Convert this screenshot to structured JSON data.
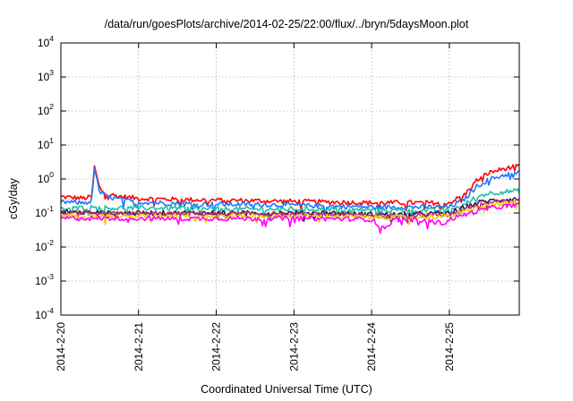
{
  "chart_data": {
    "type": "line",
    "title": "/data/run/goesPlots/archive/2014-02-25/22:00/flux/../bryn/5daysMoon.plot",
    "xlabel": "Coordinated Universal Time (UTC)",
    "ylabel": "cGy/day",
    "yscale": "log",
    "ylim": [
      0.0001,
      10000
    ],
    "xlim": [
      0,
      5.9
    ],
    "grid": true,
    "yticks": [
      {
        "base": "10",
        "exp": "-4",
        "value": 0.0001
      },
      {
        "base": "10",
        "exp": "-3",
        "value": 0.001
      },
      {
        "base": "10",
        "exp": "-2",
        "value": 0.01
      },
      {
        "base": "10",
        "exp": "-1",
        "value": 0.1
      },
      {
        "base": "10",
        "exp": "0",
        "value": 1
      },
      {
        "base": "10",
        "exp": "1",
        "value": 10
      },
      {
        "base": "10",
        "exp": "2",
        "value": 100
      },
      {
        "base": "10",
        "exp": "3",
        "value": 1000
      },
      {
        "base": "10",
        "exp": "4",
        "value": 10000
      }
    ],
    "xticks": [
      {
        "label": "2014-2-20",
        "day": 0
      },
      {
        "label": "2014-2-21",
        "day": 1
      },
      {
        "label": "2014-2-22",
        "day": 2
      },
      {
        "label": "2014-2-23",
        "day": 3
      },
      {
        "label": "2014-2-24",
        "day": 4
      },
      {
        "label": "2014-2-25",
        "day": 5
      }
    ],
    "series": [
      {
        "color": "#ff0000",
        "points": [
          [
            0,
            0.3
          ],
          [
            0.3,
            0.27
          ],
          [
            0.4,
            0.3
          ],
          [
            0.43,
            2.6
          ],
          [
            0.5,
            0.5
          ],
          [
            0.6,
            0.36
          ],
          [
            0.8,
            0.3
          ],
          [
            1,
            0.27
          ],
          [
            1.5,
            0.25
          ],
          [
            2,
            0.24
          ],
          [
            2.5,
            0.23
          ],
          [
            3,
            0.22
          ],
          [
            3.5,
            0.21
          ],
          [
            4,
            0.2
          ],
          [
            4.5,
            0.2
          ],
          [
            5,
            0.2
          ],
          [
            5.2,
            0.35
          ],
          [
            5.35,
            0.9
          ],
          [
            5.5,
            1.5
          ],
          [
            5.7,
            2.0
          ],
          [
            5.9,
            2.4
          ]
        ]
      },
      {
        "color": "#1f78ff",
        "points": [
          [
            0,
            0.21
          ],
          [
            0.3,
            0.2
          ],
          [
            0.4,
            0.22
          ],
          [
            0.43,
            2.2
          ],
          [
            0.5,
            0.4
          ],
          [
            0.6,
            0.3
          ],
          [
            0.8,
            0.24
          ],
          [
            1,
            0.21
          ],
          [
            1.5,
            0.19
          ],
          [
            2,
            0.18
          ],
          [
            2.5,
            0.18
          ],
          [
            3,
            0.17
          ],
          [
            3.5,
            0.16
          ],
          [
            4,
            0.15
          ],
          [
            4.5,
            0.15
          ],
          [
            5,
            0.15
          ],
          [
            5.2,
            0.26
          ],
          [
            5.35,
            0.6
          ],
          [
            5.5,
            0.95
          ],
          [
            5.7,
            1.3
          ],
          [
            5.9,
            1.6
          ]
        ]
      },
      {
        "color": "#20c0a0",
        "points": [
          [
            0,
            0.13
          ],
          [
            0.43,
            0.15
          ],
          [
            0.6,
            0.14
          ],
          [
            1,
            0.14
          ],
          [
            1.5,
            0.14
          ],
          [
            2,
            0.13
          ],
          [
            2.5,
            0.13
          ],
          [
            3,
            0.13
          ],
          [
            3.5,
            0.13
          ],
          [
            4,
            0.12
          ],
          [
            4.5,
            0.12
          ],
          [
            5,
            0.12
          ],
          [
            5.2,
            0.18
          ],
          [
            5.35,
            0.3
          ],
          [
            5.5,
            0.38
          ],
          [
            5.7,
            0.42
          ],
          [
            5.9,
            0.45
          ]
        ]
      },
      {
        "color": "#3a1060",
        "points": [
          [
            0,
            0.11
          ],
          [
            0.5,
            0.1
          ],
          [
            1,
            0.1
          ],
          [
            1.5,
            0.1
          ],
          [
            2,
            0.1
          ],
          [
            2.5,
            0.1
          ],
          [
            3,
            0.1
          ],
          [
            3.5,
            0.1
          ],
          [
            4,
            0.09
          ],
          [
            4.5,
            0.09
          ],
          [
            5,
            0.1
          ],
          [
            5.2,
            0.15
          ],
          [
            5.4,
            0.21
          ],
          [
            5.6,
            0.24
          ],
          [
            5.9,
            0.26
          ]
        ]
      },
      {
        "color": "#b83070",
        "points": [
          [
            0,
            0.1
          ],
          [
            0.5,
            0.095
          ],
          [
            1,
            0.095
          ],
          [
            1.5,
            0.095
          ],
          [
            2,
            0.095
          ],
          [
            2.5,
            0.095
          ],
          [
            3,
            0.09
          ],
          [
            3.5,
            0.09
          ],
          [
            4,
            0.085
          ],
          [
            4.5,
            0.085
          ],
          [
            5,
            0.09
          ],
          [
            5.2,
            0.13
          ],
          [
            5.4,
            0.18
          ],
          [
            5.6,
            0.21
          ],
          [
            5.9,
            0.23
          ]
        ]
      },
      {
        "color": "#f0d000",
        "points": [
          [
            0,
            0.085
          ],
          [
            0.5,
            0.08
          ],
          [
            1,
            0.08
          ],
          [
            1.5,
            0.085
          ],
          [
            2,
            0.08
          ],
          [
            2.5,
            0.08
          ],
          [
            3,
            0.08
          ],
          [
            3.5,
            0.08
          ],
          [
            4,
            0.075
          ],
          [
            4.5,
            0.075
          ],
          [
            5,
            0.08
          ],
          [
            5.2,
            0.11
          ],
          [
            5.4,
            0.15
          ],
          [
            5.6,
            0.18
          ],
          [
            5.9,
            0.2
          ]
        ]
      },
      {
        "color": "#ff00ff",
        "points": [
          [
            0,
            0.07
          ],
          [
            0.5,
            0.07
          ],
          [
            1,
            0.07
          ],
          [
            1.5,
            0.068
          ],
          [
            2,
            0.07
          ],
          [
            2.5,
            0.068
          ],
          [
            3,
            0.07
          ],
          [
            3.5,
            0.068
          ],
          [
            4,
            0.065
          ],
          [
            4.15,
            0.035
          ],
          [
            4.3,
            0.065
          ],
          [
            4.5,
            0.065
          ],
          [
            4.95,
            0.05
          ],
          [
            5,
            0.065
          ],
          [
            5.2,
            0.09
          ],
          [
            5.4,
            0.12
          ],
          [
            5.6,
            0.15
          ],
          [
            5.9,
            0.17
          ]
        ]
      }
    ]
  }
}
